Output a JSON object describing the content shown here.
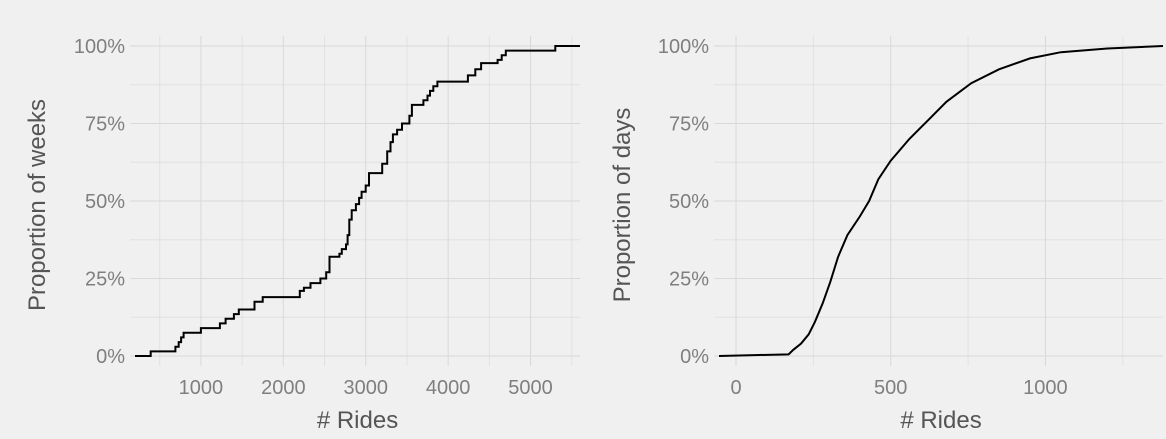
{
  "chart_data": [
    {
      "type": "line",
      "title": "",
      "xlabel": "# Rides",
      "ylabel": "Proportion of weeks",
      "xlim": [
        200,
        5600
      ],
      "ylim": [
        0,
        1
      ],
      "x_ticks": [
        1000,
        2000,
        3000,
        4000,
        5000
      ],
      "x_tick_labels": [
        "1000",
        "2000",
        "3000",
        "4000",
        "5000"
      ],
      "y_ticks": [
        0,
        0.25,
        0.5,
        0.75,
        1
      ],
      "y_tick_labels": [
        "0%",
        "25%",
        "50%",
        "75%",
        "100%"
      ],
      "grid": true,
      "series": [
        {
          "style": "step",
          "color": "#000000",
          "points": [
            [
              200,
              0
            ],
            [
              390,
              0.015
            ],
            [
              690,
              0.03
            ],
            [
              730,
              0.045
            ],
            [
              760,
              0.06
            ],
            [
              790,
              0.075
            ],
            [
              1000,
              0.09
            ],
            [
              1230,
              0.105
            ],
            [
              1300,
              0.12
            ],
            [
              1400,
              0.135
            ],
            [
              1460,
              0.15
            ],
            [
              1650,
              0.175
            ],
            [
              1750,
              0.19
            ],
            [
              2100,
              0.19
            ],
            [
              2200,
              0.21
            ],
            [
              2250,
              0.22
            ],
            [
              2330,
              0.235
            ],
            [
              2450,
              0.25
            ],
            [
              2520,
              0.27
            ],
            [
              2560,
              0.32
            ],
            [
              2680,
              0.33
            ],
            [
              2710,
              0.345
            ],
            [
              2760,
              0.36
            ],
            [
              2780,
              0.39
            ],
            [
              2800,
              0.44
            ],
            [
              2830,
              0.47
            ],
            [
              2880,
              0.49
            ],
            [
              2920,
              0.51
            ],
            [
              2950,
              0.53
            ],
            [
              3000,
              0.55
            ],
            [
              3040,
              0.59
            ],
            [
              3200,
              0.62
            ],
            [
              3260,
              0.66
            ],
            [
              3300,
              0.69
            ],
            [
              3330,
              0.715
            ],
            [
              3380,
              0.73
            ],
            [
              3440,
              0.75
            ],
            [
              3530,
              0.775
            ],
            [
              3560,
              0.81
            ],
            [
              3700,
              0.825
            ],
            [
              3750,
              0.84
            ],
            [
              3780,
              0.855
            ],
            [
              3820,
              0.87
            ],
            [
              3870,
              0.885
            ],
            [
              4240,
              0.905
            ],
            [
              4330,
              0.925
            ],
            [
              4400,
              0.945
            ],
            [
              4600,
              0.955
            ],
            [
              4650,
              0.97
            ],
            [
              4700,
              0.985
            ],
            [
              5300,
              1.0
            ],
            [
              5600,
              1.0
            ]
          ]
        }
      ]
    },
    {
      "type": "line",
      "title": "",
      "xlabel": "# Rides",
      "ylabel": "Proportion of days",
      "xlim": [
        -55,
        1380
      ],
      "ylim": [
        0,
        1
      ],
      "x_ticks": [
        0,
        500,
        1000
      ],
      "x_tick_labels": [
        "0",
        "500",
        "1000"
      ],
      "y_ticks": [
        0,
        0.25,
        0.5,
        0.75,
        1
      ],
      "y_tick_labels": [
        "0%",
        "25%",
        "50%",
        "75%",
        "100%"
      ],
      "grid": true,
      "series": [
        {
          "style": "line",
          "color": "#000000",
          "points": [
            [
              -55,
              0
            ],
            [
              60,
              0.003
            ],
            [
              170,
              0.005
            ],
            [
              185,
              0.02
            ],
            [
              210,
              0.04
            ],
            [
              235,
              0.07
            ],
            [
              255,
              0.11
            ],
            [
              280,
              0.17
            ],
            [
              305,
              0.24
            ],
            [
              330,
              0.32
            ],
            [
              360,
              0.39
            ],
            [
              400,
              0.45
            ],
            [
              430,
              0.5
            ],
            [
              460,
              0.57
            ],
            [
              500,
              0.63
            ],
            [
              560,
              0.7
            ],
            [
              620,
              0.76
            ],
            [
              680,
              0.82
            ],
            [
              760,
              0.88
            ],
            [
              850,
              0.925
            ],
            [
              950,
              0.96
            ],
            [
              1050,
              0.98
            ],
            [
              1200,
              0.992
            ],
            [
              1380,
              1.0
            ]
          ]
        }
      ]
    }
  ]
}
